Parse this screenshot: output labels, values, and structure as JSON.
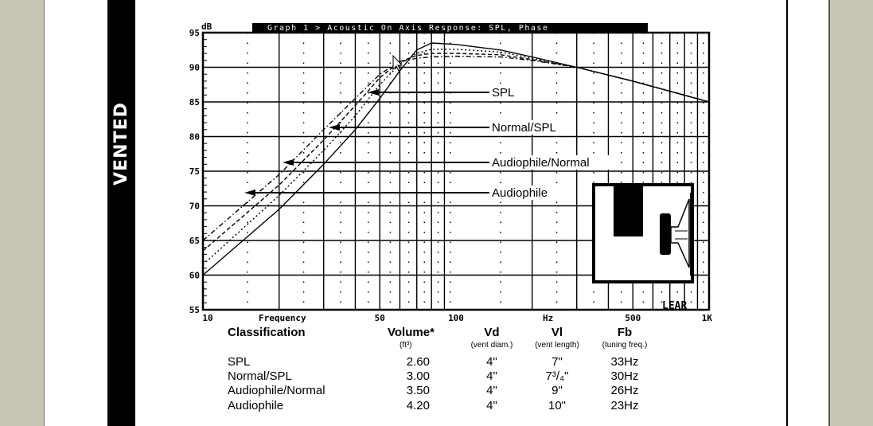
{
  "sidebar": {
    "label": "VENTED"
  },
  "chart_data": {
    "type": "line",
    "title": "Graph 1 > Acoustic On Axis Response: SPL, Phase",
    "xlabel": "Frequency",
    "xunit": "Hz",
    "ylabel": "dB",
    "xscale": "log",
    "xlim": [
      10,
      1000
    ],
    "ylim": [
      55,
      95
    ],
    "x_ticks": [
      "10",
      "50",
      "100",
      "500",
      "1K"
    ],
    "y_ticks": [
      "95",
      "90",
      "85",
      "80",
      "75",
      "70",
      "65",
      "60",
      "55"
    ],
    "grid": true,
    "x": [
      10,
      20,
      30,
      40,
      50,
      60,
      70,
      80,
      100,
      150,
      200,
      300,
      500,
      1000
    ],
    "series": [
      {
        "name": "SPL",
        "style": "solid",
        "values": [
          60.0,
          69.5,
          76.0,
          81.0,
          85.5,
          89.5,
          92.5,
          93.5,
          93.3,
          92.5,
          91.5,
          90.0,
          88.0,
          85.0
        ]
      },
      {
        "name": "Normal/SPL",
        "style": "dotted",
        "values": [
          61.5,
          71.5,
          78.0,
          83.0,
          87.5,
          90.5,
          92.0,
          92.6,
          92.6,
          92.2,
          91.3,
          90.0,
          88.0,
          85.0
        ]
      },
      {
        "name": "Audiophile/Normal",
        "style": "dashed",
        "values": [
          63.5,
          73.0,
          79.5,
          84.5,
          88.5,
          90.8,
          91.7,
          92.0,
          92.0,
          91.8,
          91.1,
          90.0,
          88.0,
          85.0
        ]
      },
      {
        "name": "Audiophile",
        "style": "dash-dot",
        "values": [
          65.0,
          74.5,
          81.0,
          85.5,
          89.0,
          90.8,
          91.3,
          91.5,
          91.6,
          91.5,
          91.0,
          90.0,
          88.0,
          85.0
        ]
      }
    ],
    "annotations": [
      {
        "text": "SPL",
        "arrow_to_dB": 86.5
      },
      {
        "text": "Normal/SPL",
        "arrow_to_dB": 81.5
      },
      {
        "text": "Audiophile/Normal",
        "arrow_to_dB": 76.5
      },
      {
        "text": "Audiophile",
        "arrow_to_dB": 72.0
      }
    ],
    "brand": "LEAR"
  },
  "table": {
    "headers": [
      {
        "label": "Classification",
        "sub": ""
      },
      {
        "label": "Volume*",
        "sub": "(ft³)"
      },
      {
        "label": "Vd",
        "sub": "(vent diam.)"
      },
      {
        "label": "Vl",
        "sub": "(vent length)"
      },
      {
        "label": "Fb",
        "sub": "(tuning freq.)"
      }
    ],
    "rows": [
      {
        "classification": "SPL",
        "volume": "2.60",
        "vd": "4\"",
        "vl": "7\"",
        "fb": "33Hz"
      },
      {
        "classification": "Normal/SPL",
        "volume": "3.00",
        "vd": "4\"",
        "vl": "7³/₄\"",
        "fb": "30Hz"
      },
      {
        "classification": "Audiophile/Normal",
        "volume": "3.50",
        "vd": "4\"",
        "vl": "9\"",
        "fb": "26Hz"
      },
      {
        "classification": "Audiophile",
        "volume": "4.20",
        "vd": "4\"",
        "vl": "10\"",
        "fb": "23Hz"
      }
    ]
  }
}
